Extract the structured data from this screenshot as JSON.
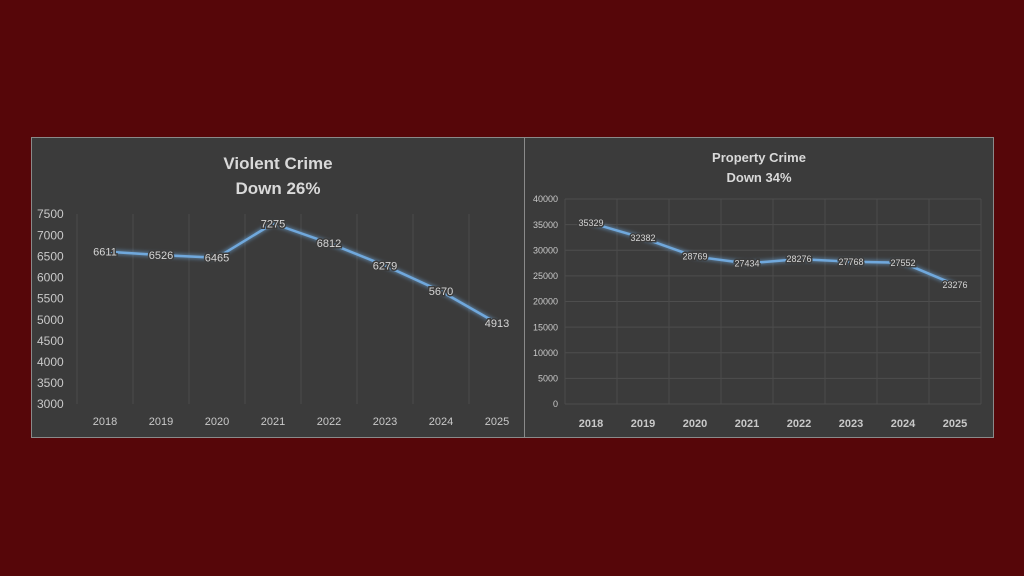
{
  "chart_data": [
    {
      "type": "line",
      "title": "Violent Crime",
      "subtitle": "Down 26%",
      "categories": [
        "2018",
        "2019",
        "2020",
        "2021",
        "2022",
        "2023",
        "2024",
        "2025"
      ],
      "values": [
        6611,
        6526,
        6465,
        7275,
        6812,
        6279,
        5670,
        4913
      ],
      "yticks": [
        "3000",
        "3500",
        "4000",
        "4500",
        "5000",
        "5500",
        "6000",
        "6500",
        "7000",
        "7500"
      ],
      "ylim": [
        3000,
        7500
      ],
      "xlabel": "",
      "ylabel": "",
      "grid": true,
      "line_color": "#6fa8dc"
    },
    {
      "type": "line",
      "title": "Property Crime",
      "subtitle": "Down 34%",
      "categories": [
        "2018",
        "2019",
        "2020",
        "2021",
        "2022",
        "2023",
        "2024",
        "2025"
      ],
      "values": [
        35329,
        32382,
        28769,
        27434,
        28276,
        27768,
        27552,
        23276
      ],
      "yticks": [
        "0",
        "5000",
        "10000",
        "15000",
        "20000",
        "25000",
        "30000",
        "35000",
        "40000"
      ],
      "ylim": [
        0,
        40000
      ],
      "xlabel": "",
      "ylabel": "",
      "grid": true,
      "line_color": "#6fa8dc"
    }
  ]
}
